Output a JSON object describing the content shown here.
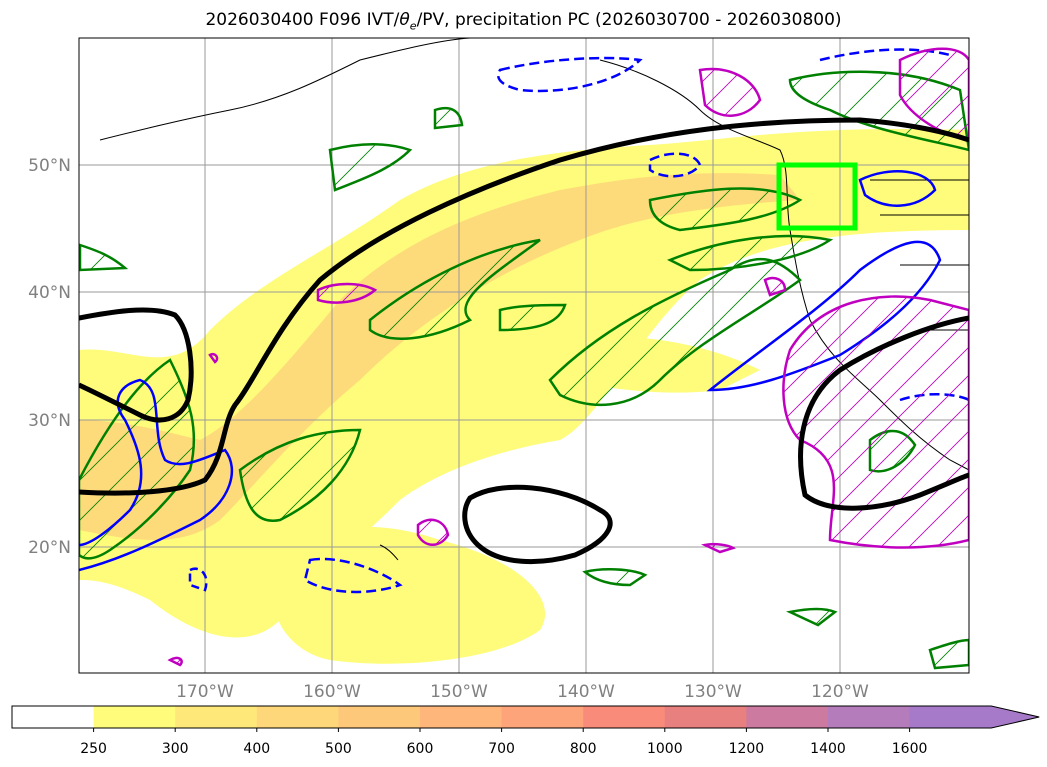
{
  "title": "2026030400 F096 IVT/θe/PV, precipitation PC (2026030700 - 2026030800)",
  "title_parts": {
    "prefix": "2026030400 F096 IVT/",
    "theta": "θ",
    "theta_sub": "e",
    "suffix": "/PV, precipitation PC (2026030700 - 2026030800)"
  },
  "lat_labels": [
    "50°N",
    "40°N",
    "30°N",
    "20°N"
  ],
  "lon_labels": [
    "170°W",
    "160°W",
    "150°W",
    "140°W",
    "130°W",
    "120°W"
  ],
  "colorbar": {
    "ticks": [
      "250",
      "300",
      "400",
      "500",
      "600",
      "700",
      "800",
      "1000",
      "1200",
      "1400",
      "1600"
    ],
    "colors": [
      "#ffffff",
      "#fefc7a",
      "#fee87a",
      "#fed77a",
      "#fec87a",
      "#feb67a",
      "#fea47a",
      "#f88b7a",
      "#e7807e",
      "#cc7aa0",
      "#b57cbc",
      "#a67ac8"
    ]
  },
  "colors": {
    "green_contour": "#008000",
    "blue_contour": "#0000ff",
    "magenta_contour": "#c000c0",
    "black_contour": "#000000",
    "highlight_box": "#00ff00",
    "ivt_yellow": "#fefc7a",
    "ivt_orange": "#fed77a"
  }
}
